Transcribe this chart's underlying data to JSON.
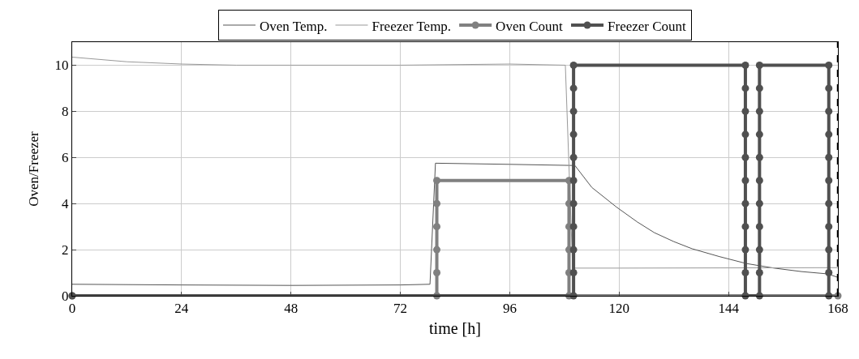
{
  "chart_data": {
    "type": "line",
    "xlabel": "time [h]",
    "ylabel": "Oven/Freezer",
    "xlim": [
      0,
      168
    ],
    "xticks": [
      0,
      24,
      48,
      72,
      96,
      120,
      144,
      168
    ],
    "ylim": [
      0,
      11
    ],
    "yticks": [
      0,
      2,
      4,
      6,
      8,
      10
    ],
    "grid": true,
    "legend": "top",
    "series": [
      {
        "name": "Oven Temp.",
        "color": "#555555",
        "marker": "none",
        "x": [
          0,
          24,
          48,
          72,
          78.5,
          79.7,
          96,
          110.3,
          114,
          119.4,
          124,
          127.7,
          132,
          136,
          142,
          147.9,
          154,
          160,
          165.7,
          168
        ],
        "values": [
          0.5,
          0.47,
          0.45,
          0.47,
          0.5,
          5.75,
          5.7,
          5.65,
          4.7,
          3.85,
          3.2,
          2.74,
          2.35,
          2.04,
          1.7,
          1.4,
          1.2,
          1.05,
          0.95,
          0.8
        ]
      },
      {
        "name": "Freezer Temp.",
        "color": "#999999",
        "marker": "none",
        "x": [
          0,
          12,
          24,
          36,
          48,
          72,
          96,
          108.2,
          109.8,
          120,
          144,
          168
        ],
        "values": [
          10.35,
          10.15,
          10.05,
          10.0,
          10.0,
          10.0,
          10.05,
          10.0,
          1.2,
          1.2,
          1.21,
          1.22
        ]
      },
      {
        "name": "Oven Count",
        "color": "#808080",
        "marker": "circle",
        "x": [
          0,
          80,
          80,
          80,
          80,
          80,
          80,
          109,
          109,
          109,
          109,
          109,
          109,
          168
        ],
        "values": [
          0,
          0,
          1,
          2,
          3,
          4,
          5,
          5,
          4,
          3,
          2,
          1,
          0,
          0
        ]
      },
      {
        "name": "Freezer Count",
        "color": "#505050",
        "marker": "circle",
        "x": [
          0,
          110,
          110,
          110,
          110,
          110,
          110,
          110,
          110,
          110,
          110,
          110,
          147.7,
          147.7,
          147.7,
          147.7,
          147.7,
          147.7,
          147.7,
          147.7,
          147.7,
          147.7,
          147.7,
          150.8,
          150.8,
          150.8,
          150.8,
          150.8,
          150.8,
          150.8,
          150.8,
          150.8,
          150.8,
          150.8,
          166,
          166,
          166,
          166,
          166,
          166,
          166,
          166,
          166,
          166,
          166
        ],
        "values": [
          0,
          0,
          1,
          2,
          3,
          4,
          5,
          6,
          7,
          8,
          9,
          10,
          10,
          9,
          8,
          7,
          6,
          5,
          4,
          3,
          2,
          1,
          0,
          0,
          1,
          2,
          3,
          4,
          5,
          6,
          7,
          8,
          9,
          10,
          10,
          9,
          8,
          7,
          6,
          5,
          4,
          3,
          2,
          1,
          0
        ]
      }
    ],
    "ref_lines": [
      {
        "axis": "x",
        "value": 168,
        "color": "#000000",
        "line_style": "dashed"
      }
    ]
  }
}
